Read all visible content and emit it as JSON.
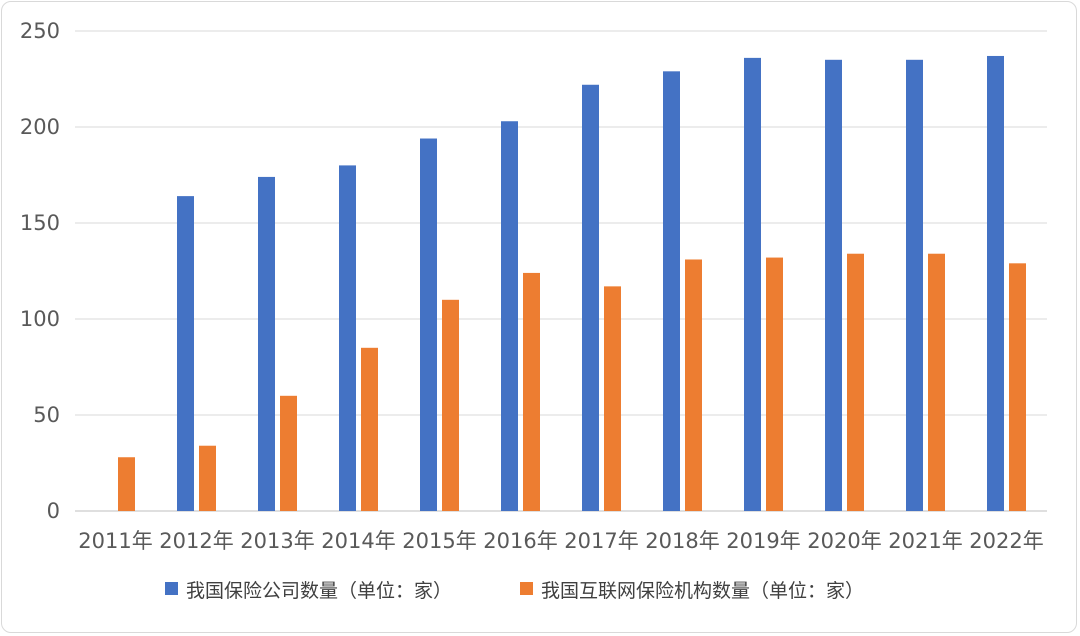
{
  "chart_data": {
    "type": "bar",
    "title": "",
    "xlabel": "",
    "ylabel": "",
    "categories": [
      "2011年",
      "2012年",
      "2013年",
      "2014年",
      "2015年",
      "2016年",
      "2017年",
      "2018年",
      "2019年",
      "2020年",
      "2021年",
      "2022年"
    ],
    "ylim": [
      0,
      250
    ],
    "yticks": [
      0,
      50,
      100,
      150,
      200,
      250
    ],
    "grid": true,
    "legend_position": "bottom",
    "series": [
      {
        "name": "我国保险公司数量（单位：家）",
        "color": "#4472c4",
        "values": [
          null,
          164,
          174,
          180,
          194,
          203,
          222,
          229,
          236,
          235,
          235,
          237
        ]
      },
      {
        "name": "我国互联网保险机构数量（单位：家）",
        "color": "#ed7d31",
        "values": [
          28,
          34,
          60,
          85,
          110,
          124,
          117,
          131,
          132,
          134,
          134,
          129
        ]
      }
    ]
  }
}
